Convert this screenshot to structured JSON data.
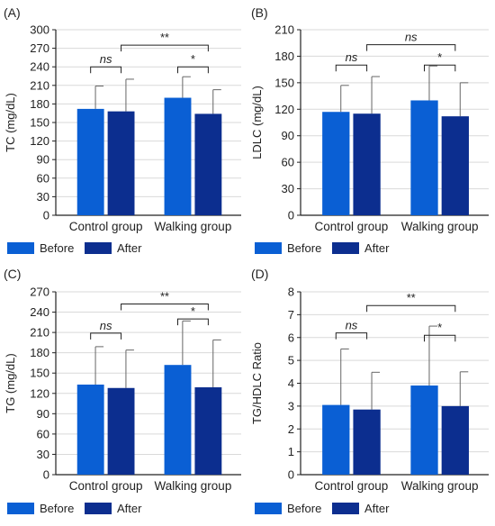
{
  "colors": {
    "before": "#0a5fd4",
    "after": "#0c2e8f",
    "grid": "#d9d9d9",
    "line": "#222222"
  },
  "legend": {
    "before_label": "Before",
    "after_label": "After"
  },
  "chart_data": [
    {
      "panel": "(A)",
      "type": "bar",
      "ylabel": "TC (mg/dL)",
      "ylim": [
        0,
        300
      ],
      "yticks": [
        0,
        30,
        60,
        90,
        120,
        150,
        180,
        210,
        240,
        270,
        300
      ],
      "categories": [
        "Control group",
        "Walking group"
      ],
      "series": [
        {
          "name": "Before",
          "values": [
            172,
            190
          ],
          "errors": [
            37,
            34
          ]
        },
        {
          "name": "After",
          "values": [
            168,
            164
          ],
          "errors": [
            52,
            39
          ]
        }
      ],
      "brackets": [
        {
          "from": [
            0,
            0
          ],
          "to": [
            0,
            1
          ],
          "y": 240,
          "label": "ns"
        },
        {
          "from": [
            1,
            0
          ],
          "to": [
            1,
            1
          ],
          "y": 240,
          "label": "*"
        },
        {
          "from": [
            0,
            1
          ],
          "to": [
            1,
            1
          ],
          "y": 275,
          "label": "**"
        }
      ]
    },
    {
      "panel": "(B)",
      "type": "bar",
      "ylabel": "LDLC (mg/dL)",
      "ylim": [
        0,
        210
      ],
      "yticks": [
        0,
        30,
        60,
        90,
        120,
        150,
        180,
        210
      ],
      "categories": [
        "Control group",
        "Walking group"
      ],
      "series": [
        {
          "name": "Before",
          "values": [
            117,
            130
          ],
          "errors": [
            30,
            39
          ]
        },
        {
          "name": "After",
          "values": [
            115,
            112
          ],
          "errors": [
            42,
            38
          ]
        }
      ],
      "brackets": [
        {
          "from": [
            0,
            0
          ],
          "to": [
            0,
            1
          ],
          "y": 170,
          "label": "ns"
        },
        {
          "from": [
            1,
            0
          ],
          "to": [
            1,
            1
          ],
          "y": 170,
          "label": "*"
        },
        {
          "from": [
            0,
            1
          ],
          "to": [
            1,
            1
          ],
          "y": 193,
          "label": "ns"
        }
      ]
    },
    {
      "panel": "(C)",
      "type": "bar",
      "ylabel": "TG (mg/dL)",
      "ylim": [
        0,
        270
      ],
      "yticks": [
        0,
        30,
        60,
        90,
        120,
        150,
        180,
        210,
        240,
        270
      ],
      "categories": [
        "Control group",
        "Walking group"
      ],
      "series": [
        {
          "name": "Before",
          "values": [
            133,
            162
          ],
          "errors": [
            56,
            65
          ]
        },
        {
          "name": "After",
          "values": [
            128,
            129
          ],
          "errors": [
            56,
            70
          ]
        }
      ],
      "brackets": [
        {
          "from": [
            0,
            0
          ],
          "to": [
            0,
            1
          ],
          "y": 209,
          "label": "ns"
        },
        {
          "from": [
            1,
            0
          ],
          "to": [
            1,
            1
          ],
          "y": 230,
          "label": "*"
        },
        {
          "from": [
            0,
            1
          ],
          "to": [
            1,
            1
          ],
          "y": 252,
          "label": "**"
        }
      ]
    },
    {
      "panel": "(D)",
      "type": "bar",
      "ylabel": "TG/HDLC Ratio",
      "ylim": [
        0,
        8
      ],
      "yticks": [
        0,
        1,
        2,
        3,
        4,
        5,
        6,
        7,
        8
      ],
      "categories": [
        "Control group",
        "Walking group"
      ],
      "series": [
        {
          "name": "Before",
          "values": [
            3.05,
            3.9
          ],
          "errors": [
            2.45,
            2.6
          ]
        },
        {
          "name": "After",
          "values": [
            2.85,
            3.0
          ],
          "errors": [
            1.63,
            1.5
          ]
        }
      ],
      "brackets": [
        {
          "from": [
            0,
            0
          ],
          "to": [
            0,
            1
          ],
          "y": 6.2,
          "label": "ns"
        },
        {
          "from": [
            1,
            0
          ],
          "to": [
            1,
            1
          ],
          "y": 6.1,
          "label": "*"
        },
        {
          "from": [
            0,
            1
          ],
          "to": [
            1,
            1
          ],
          "y": 7.4,
          "label": "**"
        }
      ]
    }
  ]
}
